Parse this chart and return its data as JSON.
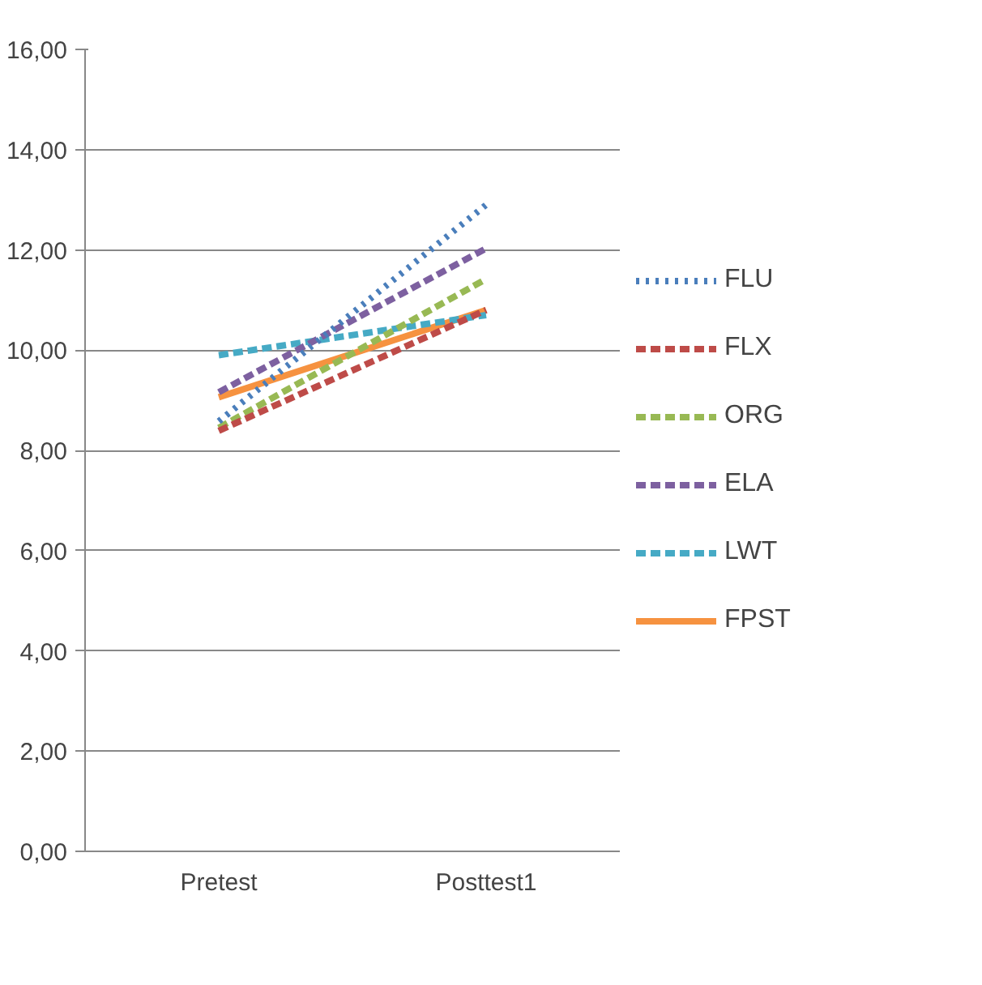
{
  "chart_data": {
    "type": "line",
    "categories": [
      "Pretest",
      "Posttest1"
    ],
    "series": [
      {
        "name": "FLU",
        "color": "#4a7ebb",
        "values": [
          8.58,
          12.9
        ],
        "line_style": "dotted"
      },
      {
        "name": "FLX",
        "color": "#be4b48",
        "values": [
          8.39,
          10.8
        ],
        "line_style": "dashed"
      },
      {
        "name": "ORG",
        "color": "#98b954",
        "values": [
          8.45,
          11.42
        ],
        "line_style": "dashed"
      },
      {
        "name": "ELA",
        "color": "#7d60a0",
        "values": [
          9.16,
          12.03
        ],
        "line_style": "dashed"
      },
      {
        "name": "LWT",
        "color": "#46aac5",
        "values": [
          9.9,
          10.7
        ],
        "line_style": "dashed"
      },
      {
        "name": "FPST",
        "color": "#f69240",
        "values": [
          9.06,
          10.8
        ],
        "line_style": "solid"
      }
    ],
    "ylim": [
      0,
      16
    ],
    "yticks": [
      {
        "value": 0,
        "label": "0,00"
      },
      {
        "value": 2,
        "label": "2,00"
      },
      {
        "value": 4,
        "label": "4,00"
      },
      {
        "value": 6,
        "label": "6,00"
      },
      {
        "value": 8,
        "label": "8,00"
      },
      {
        "value": 10,
        "label": "10,00"
      },
      {
        "value": 12,
        "label": "12,00"
      },
      {
        "value": 14,
        "label": "14,00"
      },
      {
        "value": 16,
        "label": "16,00"
      }
    ],
    "grid": "y",
    "legend": "right",
    "marker": "none"
  }
}
